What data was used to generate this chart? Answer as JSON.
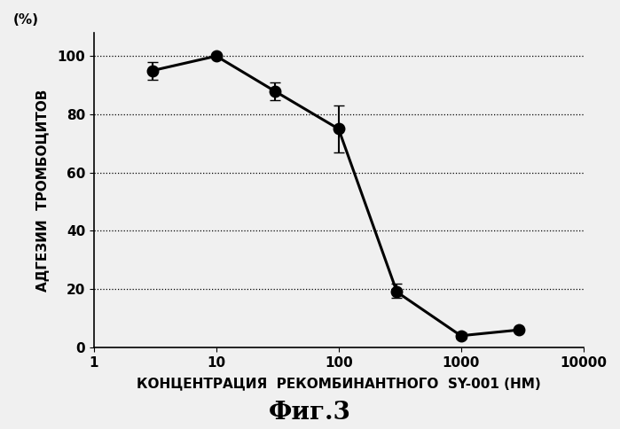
{
  "x": [
    3,
    10,
    30,
    100,
    300,
    1000,
    3000
  ],
  "y": [
    95,
    100,
    88,
    75,
    19,
    4,
    6
  ],
  "yerr_low": [
    3,
    0.5,
    3,
    8,
    2,
    1,
    0.5
  ],
  "yerr_high": [
    3,
    0.5,
    3,
    8,
    3,
    1,
    0.5
  ],
  "xlim": [
    1,
    10000
  ],
  "ylim": [
    0,
    108
  ],
  "yticks": [
    0,
    20,
    40,
    60,
    80,
    100
  ],
  "xtick_labels": [
    "1",
    "10",
    "100",
    "1000",
    "10000"
  ],
  "xtick_vals": [
    1,
    10,
    100,
    1000,
    10000
  ],
  "xlabel": "КОНЦЕНТРАЦИЯ  РЕКОМБИНАНТНОГО  SY-001 (НМ)",
  "ylabel_main": "АДГЕЗИИ  ТРОМБОЦИТОВ",
  "ylabel_pct": "(%)",
  "caption": "Фиг.3",
  "grid_yticks": [
    20,
    40,
    60,
    80,
    100
  ],
  "line_color": "#000000",
  "marker_color": "#000000",
  "background_color": "#f0f0f0",
  "plot_bg_color": "#f0f0f0",
  "marker_size": 9,
  "line_width": 2.2,
  "xlabel_fontsize": 11,
  "ylabel_fontsize": 11,
  "caption_fontsize": 20,
  "tick_fontsize": 11
}
